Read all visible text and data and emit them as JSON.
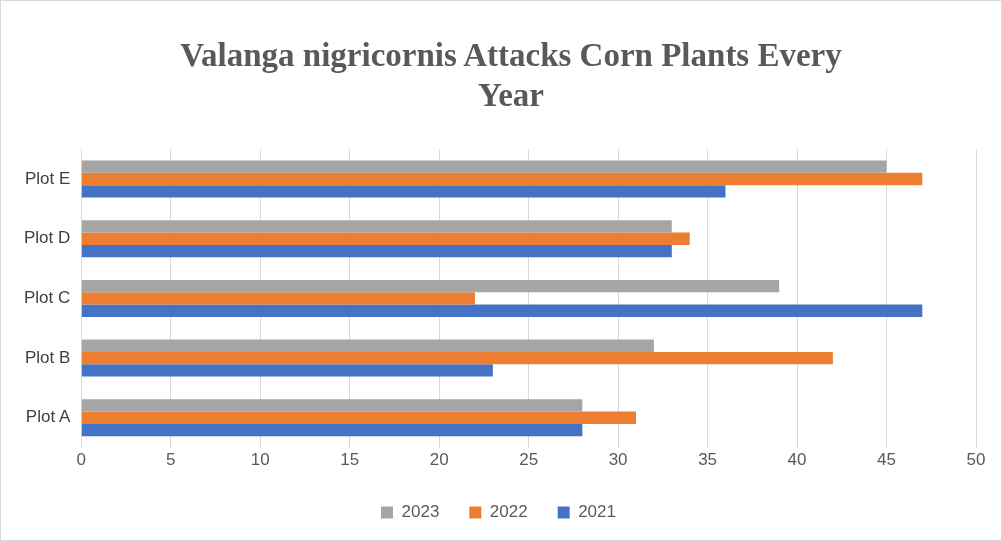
{
  "chart_data": {
    "type": "bar",
    "orientation": "horizontal",
    "title": "Valanga nigricornis Attacks Corn Plants Every Year",
    "categories": [
      "Plot E",
      "Plot D",
      "Plot C",
      "Plot B",
      "Plot A"
    ],
    "series": [
      {
        "name": "2023",
        "color": "#a5a5a5",
        "values": [
          45,
          33,
          39,
          32,
          28
        ]
      },
      {
        "name": "2022",
        "color": "#ed7d31",
        "values": [
          47,
          34,
          22,
          42,
          31
        ]
      },
      {
        "name": "2021",
        "color": "#4472c4",
        "values": [
          36,
          33,
          47,
          23,
          28
        ]
      }
    ],
    "xlim": [
      0,
      50
    ],
    "xticks": [
      0,
      5,
      10,
      15,
      20,
      25,
      30,
      35,
      40,
      45,
      50
    ],
    "grid": "x",
    "legend": "bottom"
  }
}
